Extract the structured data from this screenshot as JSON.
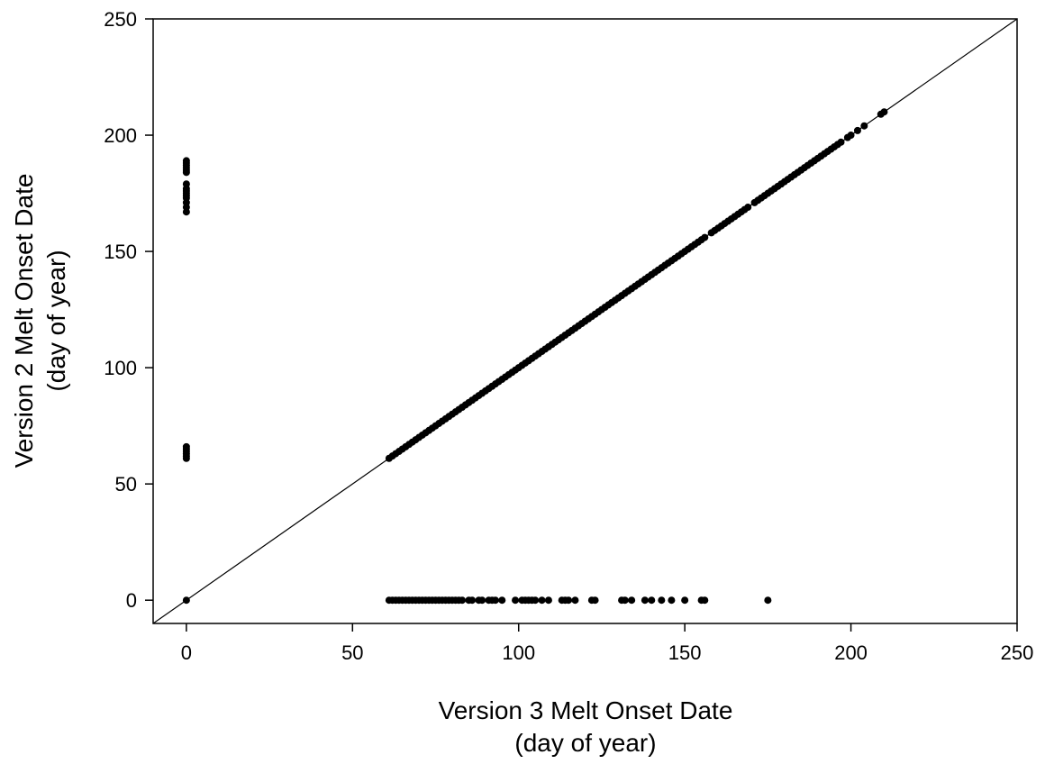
{
  "chart_data": {
    "type": "scatter",
    "title": "",
    "xlabel": "Version 3 Melt Onset Date",
    "xlabel_sub": "(day of year)",
    "ylabel": "Version 2 Melt Onset Date",
    "ylabel_sub": "(day of year)",
    "xlim": [
      -10,
      250
    ],
    "ylim": [
      -10,
      250
    ],
    "xticks": [
      0,
      50,
      100,
      150,
      200,
      250
    ],
    "yticks": [
      0,
      50,
      100,
      150,
      200,
      250
    ],
    "xtick_labels": [
      "0",
      "50",
      "100",
      "150",
      "200",
      "250"
    ],
    "ytick_labels": [
      "0",
      "50",
      "100",
      "150",
      "200",
      "250"
    ],
    "grid": false,
    "legend": "none",
    "colors": {
      "points": "#000000",
      "reference_line": "#000000",
      "axes": "#000000"
    },
    "reference_line": {
      "label": "",
      "from": [
        -10,
        -10
      ],
      "to": [
        250,
        250
      ]
    },
    "series": [
      {
        "name": "",
        "points": [
          [
            0,
            0
          ],
          [
            0,
            61
          ],
          [
            0,
            62
          ],
          [
            0,
            63
          ],
          [
            0,
            64
          ],
          [
            0,
            65
          ],
          [
            0,
            66
          ],
          [
            0,
            167
          ],
          [
            0,
            169
          ],
          [
            0,
            171
          ],
          [
            0,
            173
          ],
          [
            0,
            174
          ],
          [
            0,
            175
          ],
          [
            0,
            176
          ],
          [
            0,
            177
          ],
          [
            0,
            179
          ],
          [
            0,
            184
          ],
          [
            0,
            185
          ],
          [
            0,
            186
          ],
          [
            0,
            187
          ],
          [
            0,
            188
          ],
          [
            0,
            189
          ],
          [
            61,
            0
          ],
          [
            62,
            0
          ],
          [
            63,
            0
          ],
          [
            64,
            0
          ],
          [
            65,
            0
          ],
          [
            66,
            0
          ],
          [
            67,
            0
          ],
          [
            68,
            0
          ],
          [
            69,
            0
          ],
          [
            70,
            0
          ],
          [
            71,
            0
          ],
          [
            72,
            0
          ],
          [
            73,
            0
          ],
          [
            74,
            0
          ],
          [
            75,
            0
          ],
          [
            76,
            0
          ],
          [
            77,
            0
          ],
          [
            78,
            0
          ],
          [
            79,
            0
          ],
          [
            80,
            0
          ],
          [
            81,
            0
          ],
          [
            82,
            0
          ],
          [
            83,
            0
          ],
          [
            85,
            0
          ],
          [
            86,
            0
          ],
          [
            88,
            0
          ],
          [
            89,
            0
          ],
          [
            91,
            0
          ],
          [
            92,
            0
          ],
          [
            93,
            0
          ],
          [
            95,
            0
          ],
          [
            99,
            0
          ],
          [
            101,
            0
          ],
          [
            102,
            0
          ],
          [
            103,
            0
          ],
          [
            104,
            0
          ],
          [
            105,
            0
          ],
          [
            107,
            0
          ],
          [
            109,
            0
          ],
          [
            113,
            0
          ],
          [
            114,
            0
          ],
          [
            115,
            0
          ],
          [
            117,
            0
          ],
          [
            122,
            0
          ],
          [
            123,
            0
          ],
          [
            131,
            0
          ],
          [
            132,
            0
          ],
          [
            134,
            0
          ],
          [
            138,
            0
          ],
          [
            140,
            0
          ],
          [
            143,
            0
          ],
          [
            146,
            0
          ],
          [
            150,
            0
          ],
          [
            155,
            0
          ],
          [
            156,
            0
          ],
          [
            175,
            0
          ],
          [
            61,
            61
          ],
          [
            62,
            62
          ],
          [
            63,
            63
          ],
          [
            64,
            64
          ],
          [
            65,
            65
          ],
          [
            66,
            66
          ],
          [
            67,
            67
          ],
          [
            68,
            68
          ],
          [
            69,
            69
          ],
          [
            70,
            70
          ],
          [
            71,
            71
          ],
          [
            72,
            72
          ],
          [
            73,
            73
          ],
          [
            74,
            74
          ],
          [
            75,
            75
          ],
          [
            76,
            76
          ],
          [
            77,
            77
          ],
          [
            78,
            78
          ],
          [
            79,
            79
          ],
          [
            80,
            80
          ],
          [
            81,
            81
          ],
          [
            82,
            82
          ],
          [
            83,
            83
          ],
          [
            84,
            84
          ],
          [
            85,
            85
          ],
          [
            86,
            86
          ],
          [
            87,
            87
          ],
          [
            88,
            88
          ],
          [
            89,
            89
          ],
          [
            90,
            90
          ],
          [
            91,
            91
          ],
          [
            92,
            92
          ],
          [
            93,
            93
          ],
          [
            94,
            94
          ],
          [
            95,
            95
          ],
          [
            96,
            96
          ],
          [
            97,
            97
          ],
          [
            98,
            98
          ],
          [
            99,
            99
          ],
          [
            100,
            100
          ],
          [
            101,
            101
          ],
          [
            102,
            102
          ],
          [
            103,
            103
          ],
          [
            104,
            104
          ],
          [
            105,
            105
          ],
          [
            106,
            106
          ],
          [
            107,
            107
          ],
          [
            108,
            108
          ],
          [
            109,
            109
          ],
          [
            110,
            110
          ],
          [
            111,
            111
          ],
          [
            112,
            112
          ],
          [
            113,
            113
          ],
          [
            114,
            114
          ],
          [
            115,
            115
          ],
          [
            116,
            116
          ],
          [
            117,
            117
          ],
          [
            118,
            118
          ],
          [
            119,
            119
          ],
          [
            120,
            120
          ],
          [
            121,
            121
          ],
          [
            122,
            122
          ],
          [
            123,
            123
          ],
          [
            124,
            124
          ],
          [
            125,
            125
          ],
          [
            126,
            126
          ],
          [
            127,
            127
          ],
          [
            128,
            128
          ],
          [
            129,
            129
          ],
          [
            130,
            130
          ],
          [
            131,
            131
          ],
          [
            132,
            132
          ],
          [
            133,
            133
          ],
          [
            134,
            134
          ],
          [
            135,
            135
          ],
          [
            136,
            136
          ],
          [
            137,
            137
          ],
          [
            138,
            138
          ],
          [
            139,
            139
          ],
          [
            140,
            140
          ],
          [
            141,
            141
          ],
          [
            142,
            142
          ],
          [
            143,
            143
          ],
          [
            144,
            144
          ],
          [
            145,
            145
          ],
          [
            146,
            146
          ],
          [
            147,
            147
          ],
          [
            148,
            148
          ],
          [
            149,
            149
          ],
          [
            150,
            150
          ],
          [
            151,
            151
          ],
          [
            152,
            152
          ],
          [
            153,
            153
          ],
          [
            154,
            154
          ],
          [
            155,
            155
          ],
          [
            156,
            156
          ],
          [
            158,
            158
          ],
          [
            159,
            159
          ],
          [
            160,
            160
          ],
          [
            161,
            161
          ],
          [
            162,
            162
          ],
          [
            163,
            163
          ],
          [
            164,
            164
          ],
          [
            165,
            165
          ],
          [
            166,
            166
          ],
          [
            167,
            167
          ],
          [
            168,
            168
          ],
          [
            169,
            169
          ],
          [
            171,
            171
          ],
          [
            172,
            172
          ],
          [
            173,
            173
          ],
          [
            174,
            174
          ],
          [
            175,
            175
          ],
          [
            176,
            176
          ],
          [
            177,
            177
          ],
          [
            178,
            178
          ],
          [
            179,
            179
          ],
          [
            180,
            180
          ],
          [
            181,
            181
          ],
          [
            182,
            182
          ],
          [
            183,
            183
          ],
          [
            184,
            184
          ],
          [
            185,
            185
          ],
          [
            186,
            186
          ],
          [
            187,
            187
          ],
          [
            188,
            188
          ],
          [
            189,
            189
          ],
          [
            190,
            190
          ],
          [
            191,
            191
          ],
          [
            192,
            192
          ],
          [
            193,
            193
          ],
          [
            194,
            194
          ],
          [
            195,
            195
          ],
          [
            196,
            196
          ],
          [
            197,
            197
          ],
          [
            199,
            199
          ],
          [
            200,
            200
          ],
          [
            202,
            202
          ],
          [
            204,
            204
          ],
          [
            209,
            209
          ],
          [
            210,
            210
          ]
        ]
      }
    ]
  }
}
